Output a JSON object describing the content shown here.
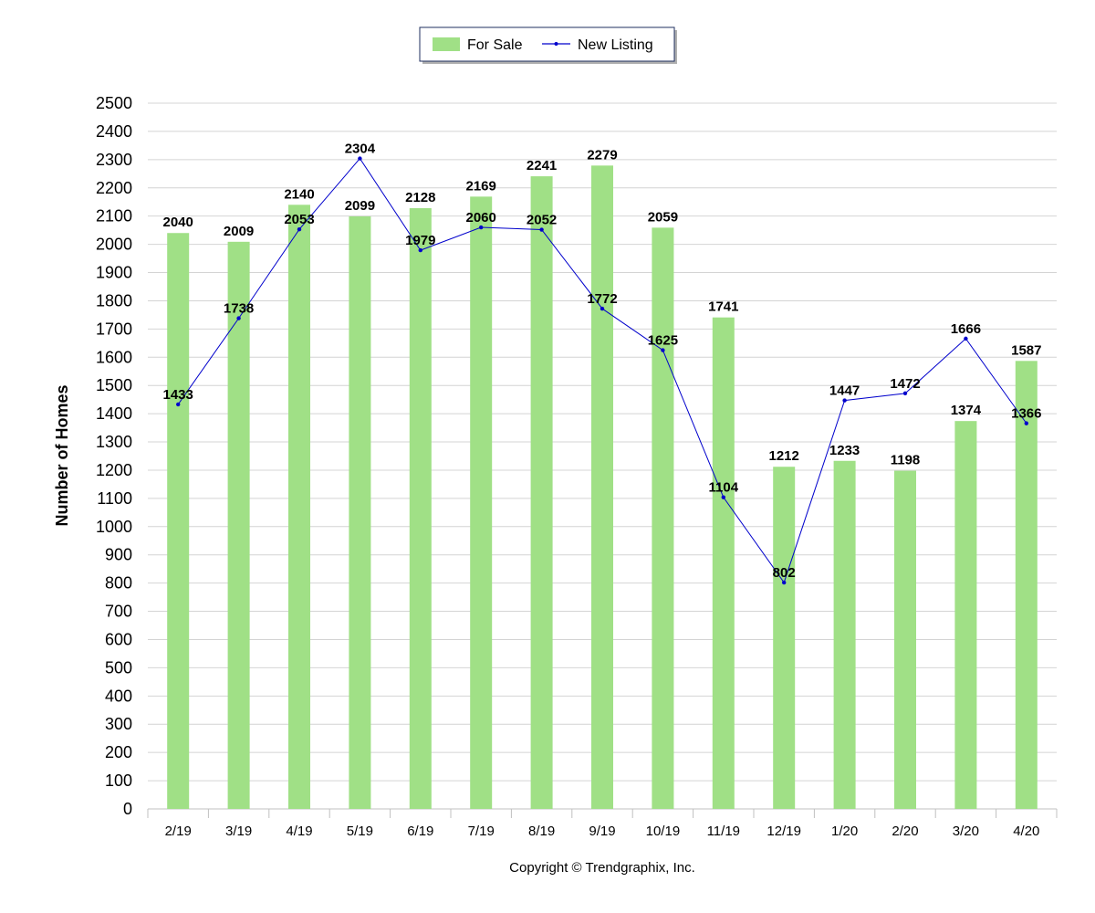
{
  "chart_data": {
    "type": "bar",
    "categories": [
      "2/19",
      "3/19",
      "4/19",
      "5/19",
      "6/19",
      "7/19",
      "8/19",
      "9/19",
      "10/19",
      "11/19",
      "12/19",
      "1/20",
      "2/20",
      "3/20",
      "4/20"
    ],
    "series": [
      {
        "name": "For Sale",
        "kind": "bar",
        "color": "#a0e086",
        "values": [
          2040,
          2009,
          2140,
          2099,
          2128,
          2169,
          2241,
          2279,
          2059,
          1741,
          1212,
          1233,
          1198,
          1374,
          1587
        ]
      },
      {
        "name": "New Listing",
        "kind": "line",
        "color": "#0000cc",
        "values": [
          1433,
          1738,
          2053,
          2304,
          1979,
          2060,
          2052,
          1772,
          1625,
          1104,
          802,
          1447,
          1472,
          1666,
          1366
        ]
      }
    ],
    "title": "",
    "xlabel": "",
    "ylabel": "Number of Homes",
    "ylim": [
      0,
      2500
    ],
    "ytick_step": 100,
    "grid": true,
    "legend_position": "top-center"
  },
  "footer": {
    "copyright": "Copyright © Trendgraphix, Inc."
  }
}
